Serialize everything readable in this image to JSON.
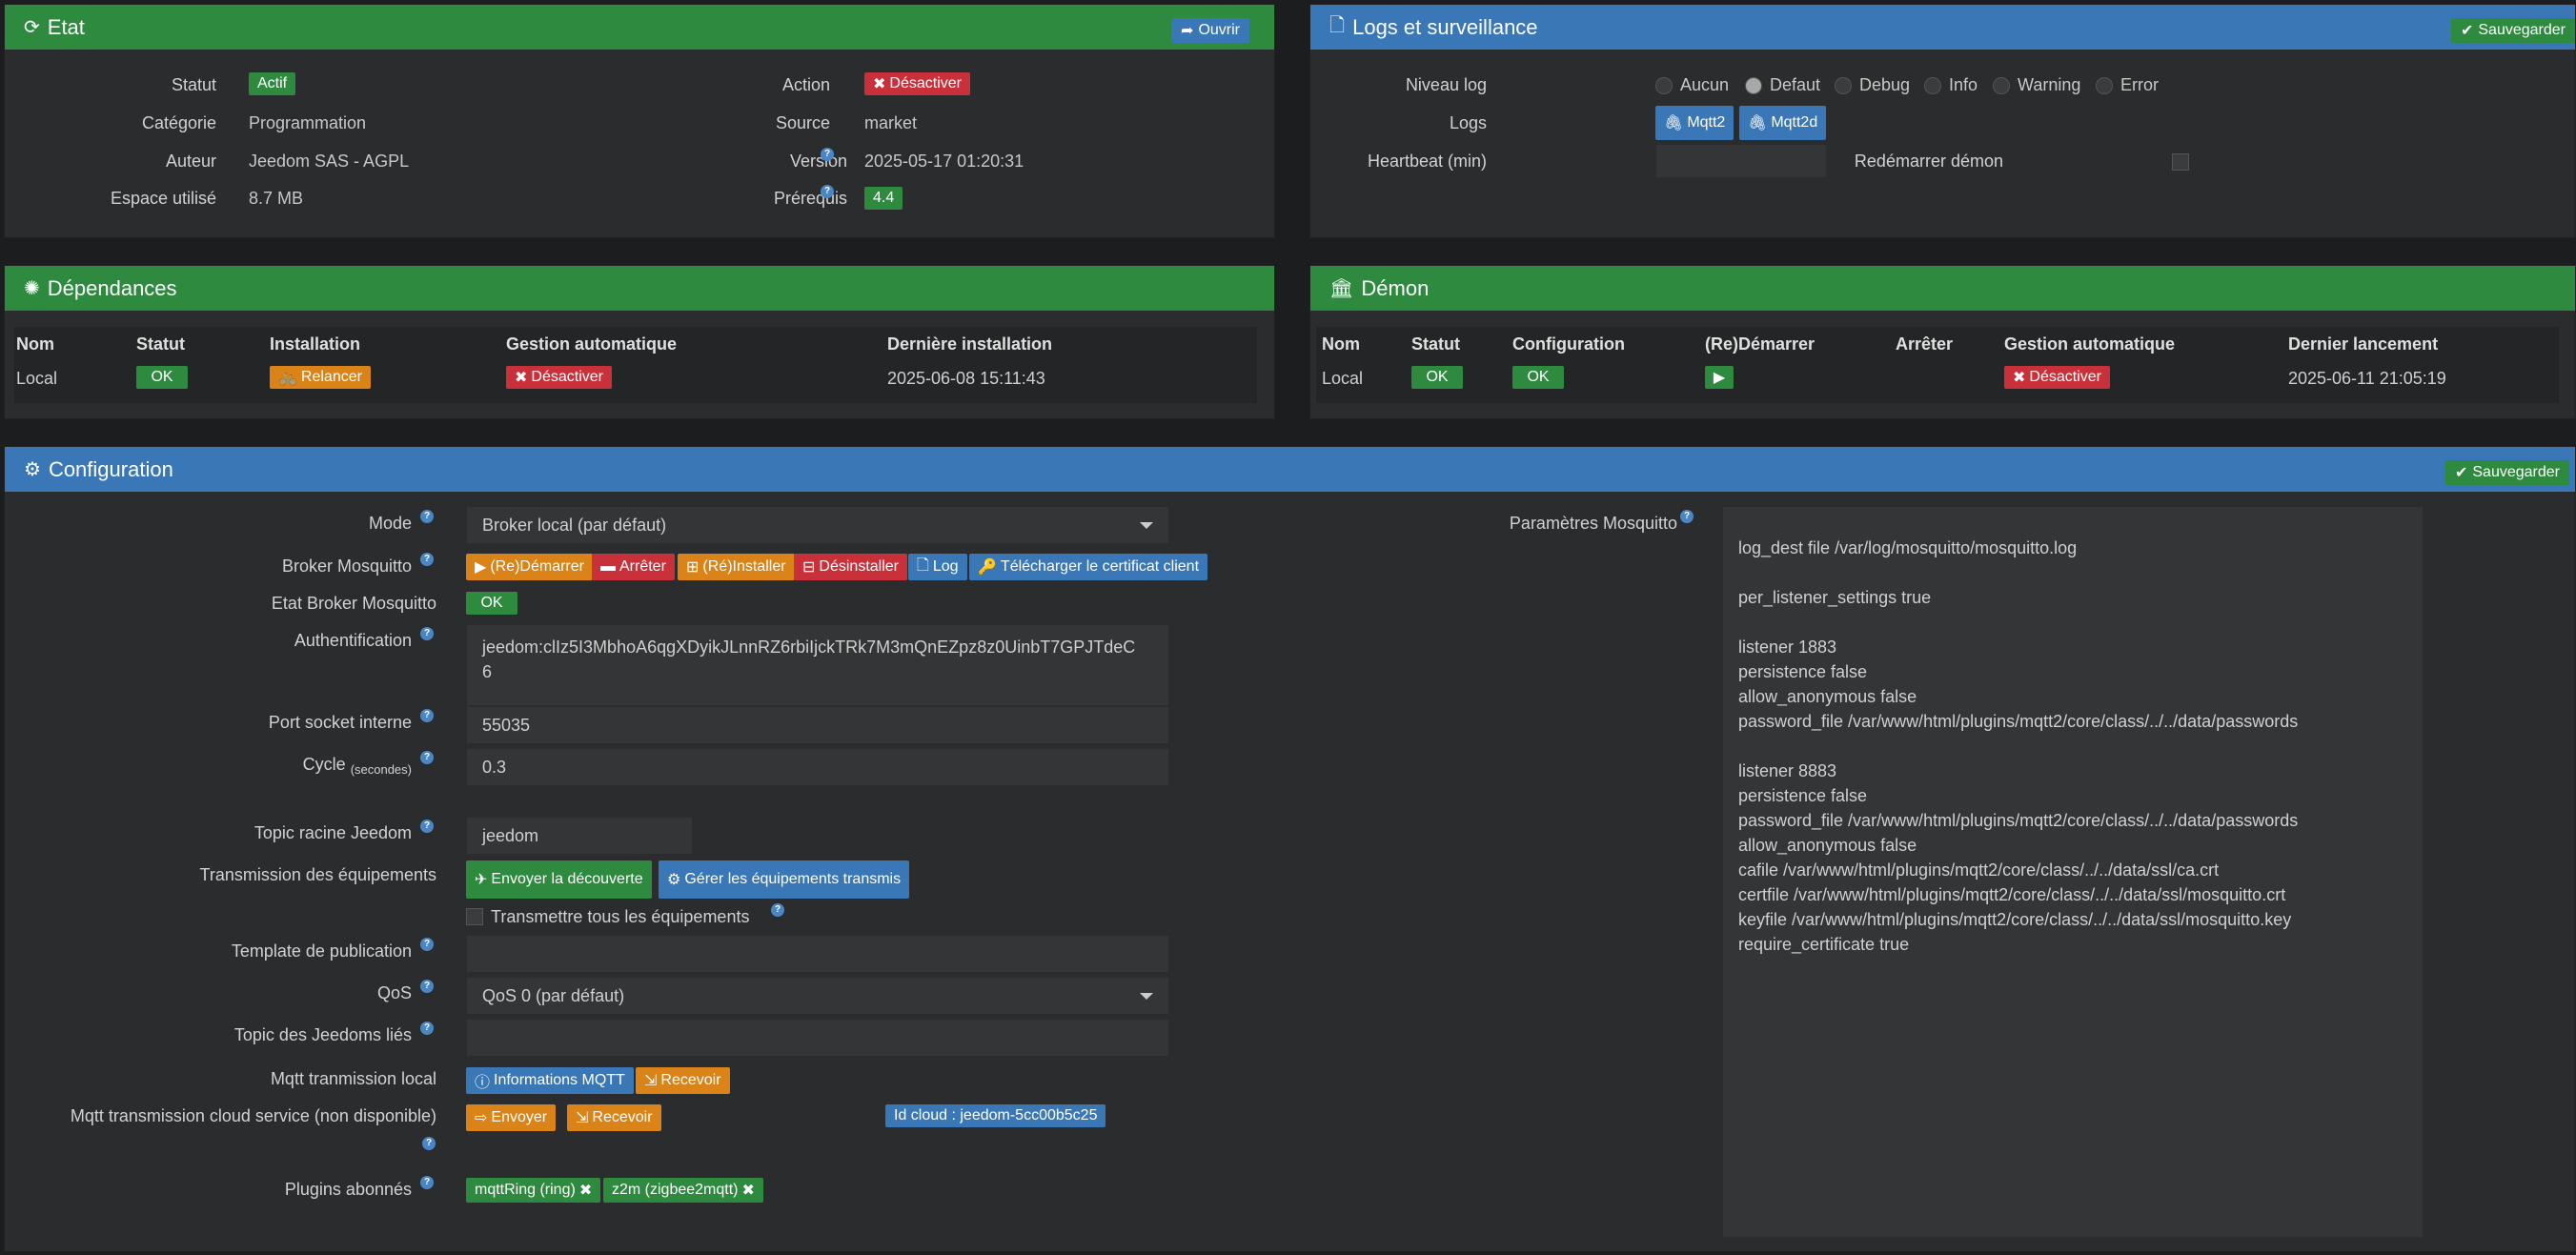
{
  "etat": {
    "title": "Etat",
    "open_btn": "Ouvrir",
    "statut_label": "Statut",
    "statut_value": "Actif",
    "categorie_label": "Catégorie",
    "categorie_value": "Programmation",
    "auteur_label": "Auteur",
    "auteur_value": "Jeedom SAS - AGPL",
    "espace_label": "Espace utilisé",
    "espace_value": "8.7 MB",
    "action_label": "Action",
    "action_btn": "Désactiver",
    "source_label": "Source",
    "source_value": "market",
    "version_label": "Version",
    "version_value": "2025-05-17 01:20:31",
    "prerequis_label": "Prérequis",
    "prerequis_value": "4.4"
  },
  "logs": {
    "title": "Logs et surveillance",
    "save_btn": "Sauvegarder",
    "niveau_label": "Niveau log",
    "levels": [
      "Aucun",
      "Defaut",
      "Debug",
      "Info",
      "Warning",
      "Error"
    ],
    "selected_level": "Defaut",
    "logs_label": "Logs",
    "log_btns": [
      "Mqtt2",
      "Mqtt2d"
    ],
    "heartbeat_label": "Heartbeat (min)",
    "heartbeat_value": "",
    "restart_label": "Redémarrer démon"
  },
  "dep": {
    "title": "Dépendances",
    "headers": [
      "Nom",
      "Statut",
      "Installation",
      "Gestion automatique",
      "Dernière installation"
    ],
    "row": {
      "nom": "Local",
      "statut": "OK",
      "install": "Relancer",
      "gestion": "Désactiver",
      "last": "2025-06-08 15:11:43"
    }
  },
  "demon": {
    "title": "Démon",
    "headers": [
      "Nom",
      "Statut",
      "Configuration",
      "(Re)Démarrer",
      "Arrêter",
      "Gestion automatique",
      "Dernier lancement"
    ],
    "row": {
      "nom": "Local",
      "statut": "OK",
      "config": "OK",
      "gestion": "Désactiver",
      "last": "2025-06-11 21:05:19"
    }
  },
  "config": {
    "title": "Configuration",
    "save_btn": "Sauvegarder",
    "mode_label": "Mode",
    "mode_value": "Broker local (par défaut)",
    "broker_label": "Broker Mosquitto",
    "broker_btns": [
      "(Re)Démarrer",
      "Arrêter",
      "(Ré)Installer",
      "Désinstaller",
      "Log",
      "Télécharger le certificat client"
    ],
    "etat_label": "Etat Broker Mosquitto",
    "etat_value": "OK",
    "auth_label": "Authentification",
    "auth_line1": "jeedom:clIz5I3MbhoA6qgXDyikJLnnRZ6rbiIjckTRk7M3mQnEZpz8z0UinbT7GPJTdeC",
    "auth_line2": "6",
    "port_label": "Port socket interne",
    "port_value": "55035",
    "cycle_label": "Cycle",
    "cycle_unit": "(secondes)",
    "cycle_value": "0.3",
    "topic_label": "Topic racine Jeedom",
    "topic_value": "jeedom",
    "trans_label": "Transmission des équipements",
    "discover_btn": "Envoyer la découverte",
    "manage_btn": "Gérer les équipements transmis",
    "trans_all_label": "Transmettre tous les équipements",
    "template_label": "Template de publication",
    "template_value": "",
    "qos_label": "QoS",
    "qos_value": "QoS 0 (par défaut)",
    "linked_label": "Topic des Jeedoms liés",
    "linked_value": "",
    "local_label": "Mqtt tranmission local",
    "info_btn": "Informations MQTT",
    "receive_btn": "Recevoir",
    "cloud_label": "Mqtt transmission cloud service (non disponible)",
    "send_btn": "Envoyer",
    "receive2_btn": "Recevoir",
    "cloud_id": "Id cloud : jeedom-5cc00b5c25",
    "plugins_label": "Plugins abonnés",
    "plugins": [
      "mqttRing (ring)",
      "z2m (zigbee2mqtt)"
    ],
    "mosquitto_label": "Paramètres Mosquitto",
    "mosquitto_lines": [
      "log_dest file /var/log/mosquitto/mosquitto.log",
      "",
      "per_listener_settings true",
      "",
      "listener 1883",
      "persistence false",
      "allow_anonymous false",
      "password_file /var/www/html/plugins/mqtt2/core/class/../../data/passwords",
      "",
      "listener 8883",
      "persistence false",
      "password_file /var/www/html/plugins/mqtt2/core/class/../../data/passwords",
      "allow_anonymous false",
      "cafile /var/www/html/plugins/mqtt2/core/class/../../data/ssl/ca.crt",
      "certfile /var/www/html/plugins/mqtt2/core/class/../../data/ssl/mosquitto.crt",
      "keyfile /var/www/html/plugins/mqtt2/core/class/../../data/ssl/mosquitto.key",
      "require_certificate true"
    ]
  }
}
